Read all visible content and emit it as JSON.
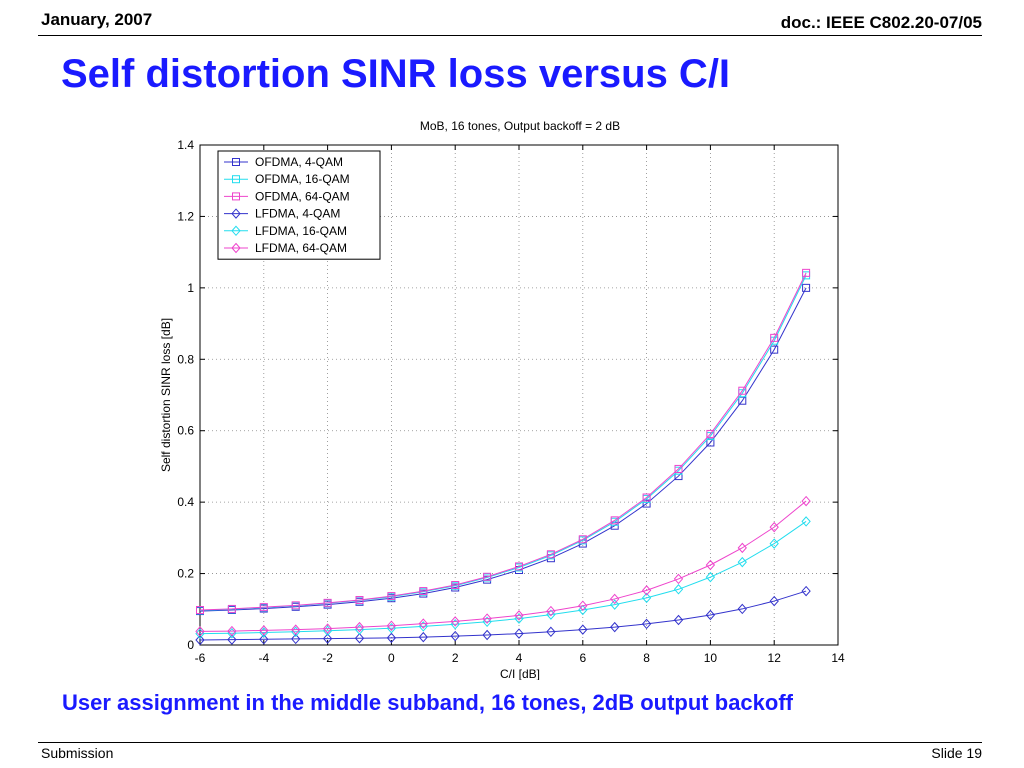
{
  "slide": {
    "date": "January, 2007",
    "doc": "doc.: IEEE C802.20-07/05",
    "title": "Self distortion SINR loss versus C/I",
    "caption": "User assignment in the middle subband, 16 tones, 2dB output backoff",
    "footer_left": "Submission",
    "footer_right": "Slide 19"
  },
  "chart_data": {
    "type": "line",
    "title": "MoB, 16 tones, Output backoff = 2 dB",
    "xlabel": "C/I [dB]",
    "ylabel": "Self distortion SINR loss [dB]",
    "xlim": [
      -6,
      14
    ],
    "ylim": [
      0,
      1.4
    ],
    "xticks": [
      -6,
      -4,
      -2,
      0,
      2,
      4,
      6,
      8,
      10,
      12,
      14
    ],
    "yticks": [
      0,
      0.2,
      0.4,
      0.6,
      0.8,
      1,
      1.2,
      1.4
    ],
    "grid": true,
    "legend_position": "top-left",
    "x": [
      -6,
      -5,
      -4,
      -3,
      -2,
      -1,
      0,
      1,
      2,
      3,
      4,
      5,
      6,
      7,
      8,
      9,
      10,
      11,
      12,
      13
    ],
    "series": [
      {
        "name": "OFDMA,  4-QAM",
        "color": "#3333cc",
        "marker": "square",
        "values": [
          0.095,
          0.098,
          0.102,
          0.107,
          0.113,
          0.121,
          0.131,
          0.144,
          0.161,
          0.183,
          0.21,
          0.243,
          0.284,
          0.334,
          0.396,
          0.473,
          0.567,
          0.684,
          0.827,
          1.0
        ]
      },
      {
        "name": "OFDMA, 16-QAM",
        "color": "#22ddee",
        "marker": "square",
        "values": [
          0.097,
          0.1,
          0.105,
          0.11,
          0.117,
          0.125,
          0.135,
          0.149,
          0.166,
          0.189,
          0.217,
          0.251,
          0.293,
          0.345,
          0.409,
          0.488,
          0.585,
          0.705,
          0.852,
          1.035
        ]
      },
      {
        "name": "OFDMA, 64-QAM",
        "color": "#ee44cc",
        "marker": "square",
        "values": [
          0.098,
          0.101,
          0.106,
          0.111,
          0.118,
          0.126,
          0.137,
          0.151,
          0.168,
          0.191,
          0.22,
          0.254,
          0.296,
          0.349,
          0.413,
          0.493,
          0.591,
          0.712,
          0.86,
          1.042
        ]
      },
      {
        "name": "LFDMA,  4-QAM",
        "color": "#3333cc",
        "marker": "diamond",
        "values": [
          0.014,
          0.015,
          0.016,
          0.017,
          0.018,
          0.019,
          0.02,
          0.022,
          0.025,
          0.028,
          0.032,
          0.037,
          0.043,
          0.05,
          0.059,
          0.07,
          0.084,
          0.101,
          0.123,
          0.151
        ]
      },
      {
        "name": "LFDMA, 16-QAM",
        "color": "#22ddee",
        "marker": "diamond",
        "values": [
          0.032,
          0.033,
          0.035,
          0.037,
          0.04,
          0.043,
          0.047,
          0.052,
          0.058,
          0.065,
          0.074,
          0.085,
          0.098,
          0.113,
          0.132,
          0.156,
          0.19,
          0.232,
          0.284,
          0.346
        ]
      },
      {
        "name": "LFDMA, 64-QAM",
        "color": "#ee44cc",
        "marker": "diamond",
        "values": [
          0.038,
          0.039,
          0.041,
          0.043,
          0.046,
          0.05,
          0.054,
          0.06,
          0.066,
          0.074,
          0.083,
          0.095,
          0.11,
          0.129,
          0.153,
          0.185,
          0.224,
          0.272,
          0.33,
          0.403
        ]
      }
    ]
  }
}
